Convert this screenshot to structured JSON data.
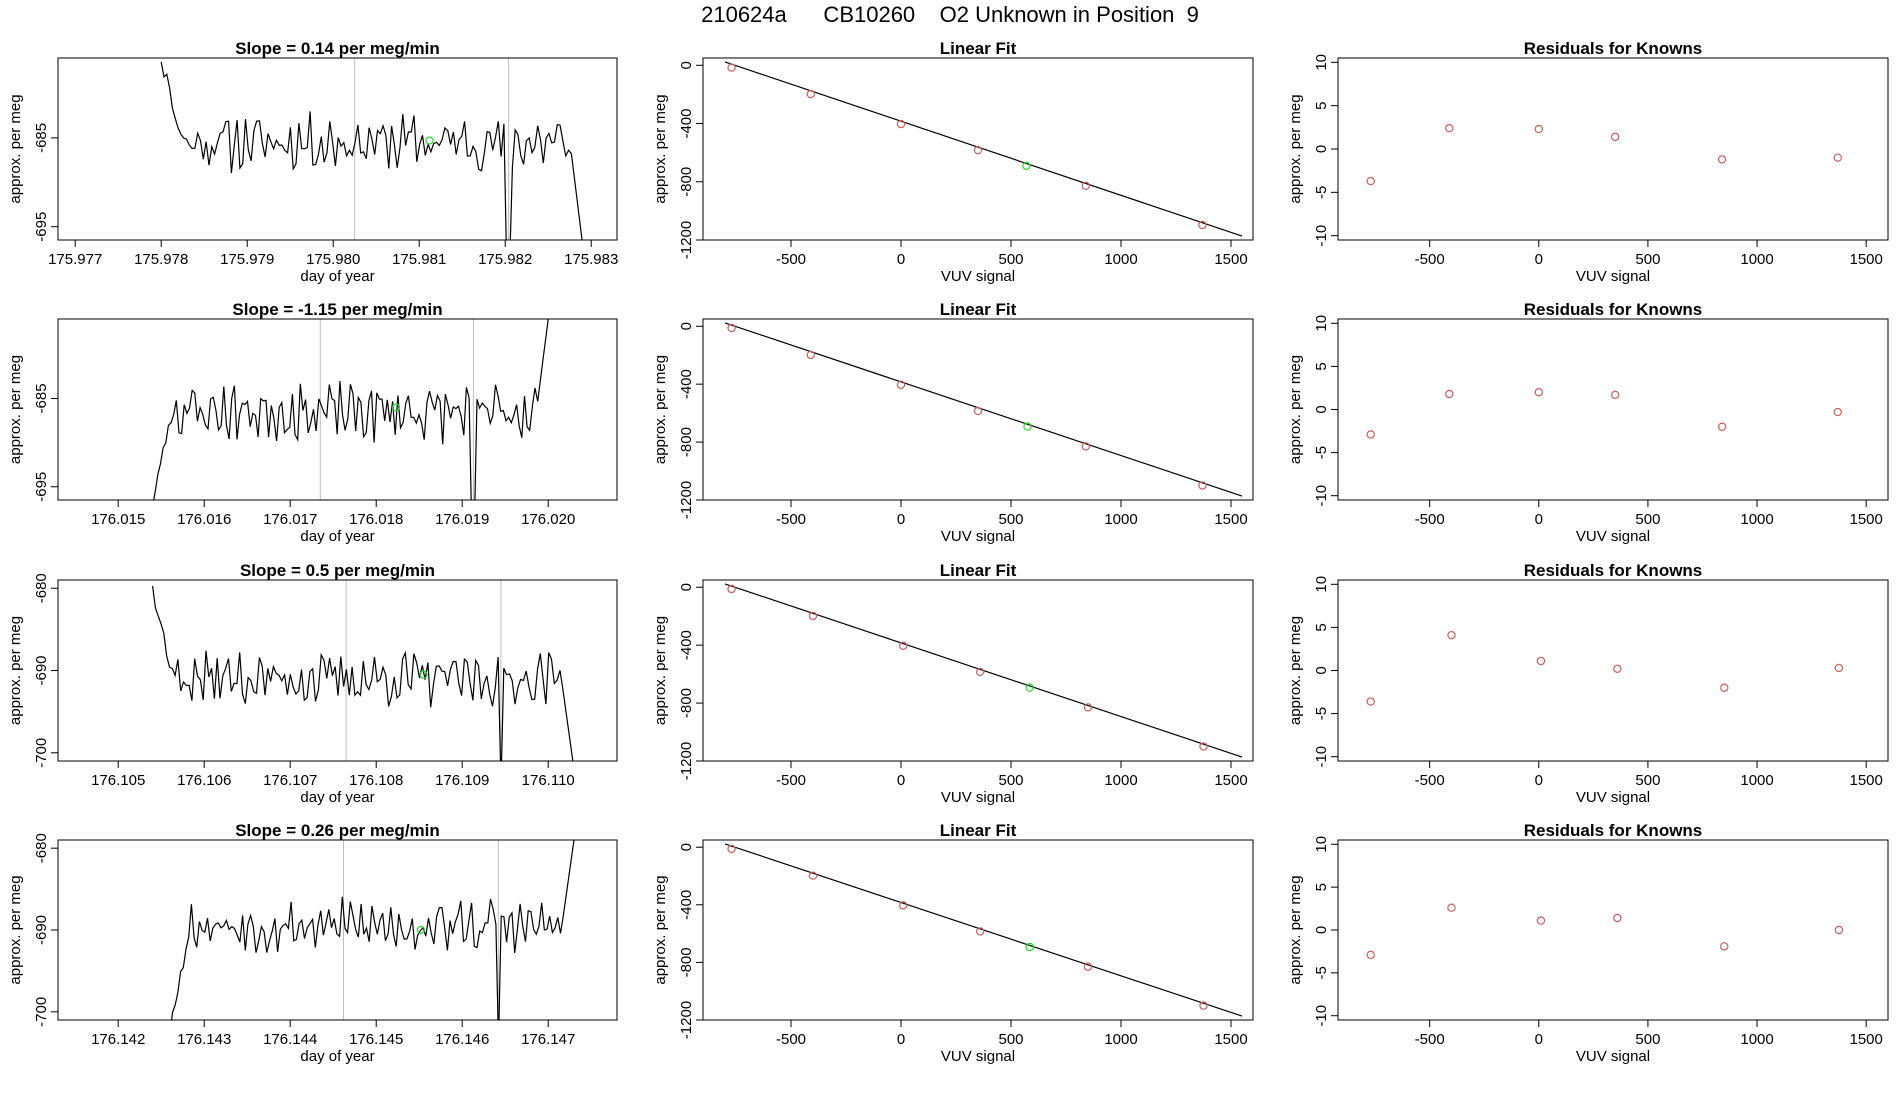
{
  "header": {
    "title": "210624a      CB10260    O2 Unknown in Position  9"
  },
  "colors": {
    "known": "#CD5C5C",
    "unknown": "#22DD22",
    "trace": "#000000",
    "marker_line": "#BEBEBE"
  },
  "chart_data": [
    {
      "type": "line",
      "title": "Slope =  0.14  per meg/min",
      "xlabel": "day of year",
      "ylabel": "approx. per meg",
      "xlim": [
        175.9768,
        175.9833
      ],
      "ylim": [
        -696.5,
        -676.0
      ],
      "xticks": [
        175.977,
        175.978,
        175.979,
        175.98,
        175.981,
        175.982,
        175.983
      ],
      "xtick_labels": [
        "175.977",
        "175.978",
        "175.979",
        "175.980",
        "175.981",
        "175.982",
        "175.983"
      ],
      "yticks": [
        -695,
        -685
      ],
      "ytick_labels": [
        "-695",
        "-685"
      ],
      "x_start": 175.978,
      "x_end": 175.9829,
      "start_value": -676.0,
      "end_value": -697.0,
      "base": -685.5,
      "seed": 11,
      "markers": [
        175.98025,
        175.98204
      ],
      "unknown_point": [
        175.98112,
        -685.3
      ]
    },
    {
      "type": "scatter",
      "title": "Linear Fit",
      "xlabel": "VUV signal",
      "ylabel": "approx. per meg",
      "xlim": [
        -900,
        1600
      ],
      "ylim": [
        -1200,
        50
      ],
      "xticks": [
        -500,
        0,
        500,
        1000,
        1500
      ],
      "xtick_labels": [
        "-500",
        "0",
        "500",
        "1000",
        "1500"
      ],
      "yticks": [
        0,
        -400,
        -800,
        -1200
      ],
      "ytick_labels": [
        "0",
        "-400",
        "-800",
        "-1200"
      ],
      "fit_line": [
        [
          -800,
          23
        ],
        [
          1550,
          -1173
        ]
      ],
      "known_points": [
        [
          -770,
          -16
        ],
        [
          -410,
          -198
        ],
        [
          0,
          -404
        ],
        [
          350,
          -583
        ],
        [
          840,
          -828
        ],
        [
          1370,
          -1097
        ]
      ],
      "unknown_point": [
        570,
        -691
      ]
    },
    {
      "type": "scatter",
      "title": "Residuals for Knowns",
      "xlabel": "VUV signal",
      "ylabel": "approx. per meg",
      "xlim": [
        -920,
        1600
      ],
      "ylim": [
        -10.5,
        10.5
      ],
      "xticks": [
        -500,
        0,
        500,
        1000,
        1500
      ],
      "xtick_labels": [
        "-500",
        "0",
        "500",
        "1000",
        "1500"
      ],
      "yticks": [
        10,
        5,
        0,
        -5,
        -10
      ],
      "ytick_labels": [
        "10",
        "5",
        "0",
        "-5",
        "-10"
      ],
      "points": [
        [
          -770,
          -3.7
        ],
        [
          -410,
          2.4
        ],
        [
          0,
          2.3
        ],
        [
          350,
          1.4
        ],
        [
          840,
          -1.2
        ],
        [
          1370,
          -1.0
        ]
      ]
    },
    {
      "type": "line",
      "title": "Slope =  -1.15  per meg/min",
      "xlabel": "day of year",
      "ylabel": "approx. per meg",
      "xlim": [
        176.0143,
        176.0208
      ],
      "ylim": [
        -696.5,
        -676.0
      ],
      "xticks": [
        176.015,
        176.016,
        176.017,
        176.018,
        176.019,
        176.02
      ],
      "xtick_labels": [
        "176.015",
        "176.016",
        "176.017",
        "176.018",
        "176.019",
        "176.020"
      ],
      "yticks": [
        -695,
        -685
      ],
      "ytick_labels": [
        "-695",
        "-685"
      ],
      "x_start": 176.0154,
      "x_end": 176.02,
      "start_value": -697.0,
      "end_value": -676.0,
      "base": -686.5,
      "seed": 23,
      "markers": [
        176.01735,
        176.01913
      ],
      "unknown_point": [
        176.01823,
        -686.0
      ]
    },
    {
      "type": "scatter",
      "title": "Linear Fit",
      "xlabel": "VUV signal",
      "ylabel": "approx. per meg",
      "xlim": [
        -900,
        1600
      ],
      "ylim": [
        -1200,
        50
      ],
      "xticks": [
        -500,
        0,
        500,
        1000,
        1500
      ],
      "xtick_labels": [
        "-500",
        "0",
        "500",
        "1000",
        "1500"
      ],
      "yticks": [
        0,
        -400,
        -800,
        -1200
      ],
      "ytick_labels": [
        "0",
        "-400",
        "-800",
        "-1200"
      ],
      "fit_line": [
        [
          -800,
          23
        ],
        [
          1550,
          -1173
        ]
      ],
      "known_points": [
        [
          -770,
          -12
        ],
        [
          -410,
          -198
        ],
        [
          0,
          -404
        ],
        [
          350,
          -585
        ],
        [
          840,
          -830
        ],
        [
          1370,
          -1100
        ]
      ],
      "unknown_point": [
        575,
        -693
      ]
    },
    {
      "type": "scatter",
      "title": "Residuals for Knowns",
      "xlabel": "VUV signal",
      "ylabel": "approx. per meg",
      "xlim": [
        -920,
        1600
      ],
      "ylim": [
        -10.5,
        10.5
      ],
      "xticks": [
        -500,
        0,
        500,
        1000,
        1500
      ],
      "xtick_labels": [
        "-500",
        "0",
        "500",
        "1000",
        "1500"
      ],
      "yticks": [
        10,
        5,
        0,
        -5,
        -10
      ],
      "ytick_labels": [
        "10",
        "5",
        "0",
        "-5",
        "-10"
      ],
      "points": [
        [
          -770,
          -2.9
        ],
        [
          -410,
          1.8
        ],
        [
          0,
          2.0
        ],
        [
          350,
          1.7
        ],
        [
          840,
          -2.0
        ],
        [
          1370,
          -0.3
        ]
      ]
    },
    {
      "type": "line",
      "title": "Slope =  0.5  per meg/min",
      "xlabel": "day of year",
      "ylabel": "approx. per meg",
      "xlim": [
        176.1043,
        176.1108
      ],
      "ylim": [
        -701.0,
        -679.0
      ],
      "xticks": [
        176.105,
        176.106,
        176.107,
        176.108,
        176.109,
        176.11
      ],
      "xtick_labels": [
        "176.105",
        "176.106",
        "176.107",
        "176.108",
        "176.109",
        "176.110"
      ],
      "yticks": [
        -700,
        -690,
        -680
      ],
      "ytick_labels": [
        "-700",
        "-690",
        "-680"
      ],
      "x_start": 176.1054,
      "x_end": 176.1103,
      "start_value": -680.0,
      "end_value": -702.0,
      "base": -691.0,
      "seed": 37,
      "markers": [
        176.10765,
        176.10945
      ],
      "unknown_point": [
        176.10855,
        -690.5
      ]
    },
    {
      "type": "scatter",
      "title": "Linear Fit",
      "xlabel": "VUV signal",
      "ylabel": "approx. per meg",
      "xlim": [
        -900,
        1600
      ],
      "ylim": [
        -1200,
        50
      ],
      "xticks": [
        -500,
        0,
        500,
        1000,
        1500
      ],
      "xtick_labels": [
        "-500",
        "0",
        "500",
        "1000",
        "1500"
      ],
      "yticks": [
        0,
        -400,
        -800,
        -1200
      ],
      "ytick_labels": [
        "0",
        "-400",
        "-800",
        "-1200"
      ],
      "fit_line": [
        [
          -800,
          23
        ],
        [
          1550,
          -1173
        ]
      ],
      "known_points": [
        [
          -770,
          -12
        ],
        [
          -400,
          -198
        ],
        [
          10,
          -404
        ],
        [
          360,
          -585
        ],
        [
          850,
          -830
        ],
        [
          1375,
          -1100
        ]
      ],
      "unknown_point": [
        585,
        -693
      ]
    },
    {
      "type": "scatter",
      "title": "Residuals for Knowns",
      "xlabel": "VUV signal",
      "ylabel": "approx. per meg",
      "xlim": [
        -920,
        1600
      ],
      "ylim": [
        -10.5,
        10.5
      ],
      "xticks": [
        -500,
        0,
        500,
        1000,
        1500
      ],
      "xtick_labels": [
        "-500",
        "0",
        "500",
        "1000",
        "1500"
      ],
      "yticks": [
        10,
        5,
        0,
        -5,
        -10
      ],
      "ytick_labels": [
        "10",
        "5",
        "0",
        "-5",
        "-10"
      ],
      "points": [
        [
          -770,
          -3.6
        ],
        [
          -400,
          4.1
        ],
        [
          10,
          1.1
        ],
        [
          360,
          0.2
        ],
        [
          850,
          -2.0
        ],
        [
          1375,
          0.3
        ]
      ]
    },
    {
      "type": "line",
      "title": "Slope =  0.26  per meg/min",
      "xlabel": "day of year",
      "ylabel": "approx. per meg",
      "xlim": [
        176.1413,
        176.1478
      ],
      "ylim": [
        -701.0,
        -679.0
      ],
      "xticks": [
        176.142,
        176.143,
        176.144,
        176.145,
        176.146,
        176.147
      ],
      "xtick_labels": [
        "176.142",
        "176.143",
        "176.144",
        "176.145",
        "176.146",
        "176.147"
      ],
      "yticks": [
        -700,
        -690,
        -680
      ],
      "ytick_labels": [
        "-700",
        "-690",
        "-680"
      ],
      "x_start": 176.1426,
      "x_end": 176.1473,
      "start_value": -702.0,
      "end_value": -679.0,
      "base": -689.5,
      "seed": 53,
      "markers": [
        176.14462,
        176.14642
      ],
      "unknown_point": [
        176.14552,
        -690.0
      ]
    },
    {
      "type": "scatter",
      "title": "Linear Fit",
      "xlabel": "VUV signal",
      "ylabel": "approx. per meg",
      "xlim": [
        -900,
        1600
      ],
      "ylim": [
        -1200,
        50
      ],
      "xticks": [
        -500,
        0,
        500,
        1000,
        1500
      ],
      "xtick_labels": [
        "-500",
        "0",
        "500",
        "1000",
        "1500"
      ],
      "yticks": [
        0,
        -400,
        -800,
        -1200
      ],
      "ytick_labels": [
        "0",
        "-400",
        "-800",
        "-1200"
      ],
      "fit_line": [
        [
          -800,
          23
        ],
        [
          1550,
          -1173
        ]
      ],
      "known_points": [
        [
          -770,
          -12
        ],
        [
          -400,
          -198
        ],
        [
          10,
          -404
        ],
        [
          360,
          -585
        ],
        [
          850,
          -830
        ],
        [
          1375,
          -1100
        ]
      ],
      "unknown_point": [
        585,
        -693
      ]
    },
    {
      "type": "scatter",
      "title": "Residuals for Knowns",
      "xlabel": "VUV signal",
      "ylabel": "approx. per meg",
      "xlim": [
        -920,
        1600
      ],
      "ylim": [
        -10.5,
        10.5
      ],
      "xticks": [
        -500,
        0,
        500,
        1000,
        1500
      ],
      "xtick_labels": [
        "-500",
        "0",
        "500",
        "1000",
        "1500"
      ],
      "yticks": [
        10,
        5,
        0,
        -5,
        -10
      ],
      "ytick_labels": [
        "10",
        "5",
        "0",
        "-5",
        "-10"
      ],
      "points": [
        [
          -770,
          -2.9
        ],
        [
          -400,
          2.6
        ],
        [
          10,
          1.1
        ],
        [
          360,
          1.4
        ],
        [
          850,
          -1.9
        ],
        [
          1375,
          0.0
        ]
      ]
    }
  ]
}
